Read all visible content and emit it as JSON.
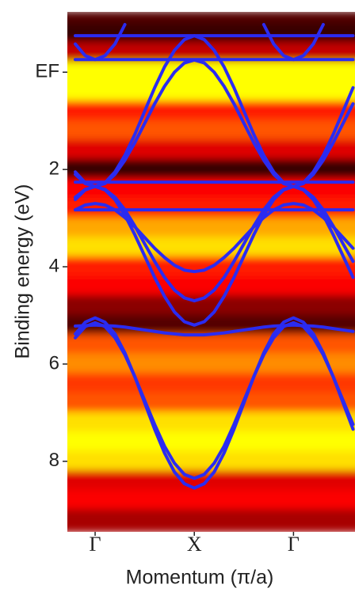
{
  "chart_data": {
    "type": "line",
    "xlabel": "Momentum (π/a)",
    "ylabel": "Binding energy (eV)",
    "xlim": [
      -0.28,
      2.62
    ],
    "xticks": [
      {
        "value": 0,
        "label": "Γ"
      },
      {
        "value": 1,
        "label": "X"
      },
      {
        "value": 2,
        "label": "Γ"
      }
    ],
    "ylim": [
      9.45,
      -1.24
    ],
    "yticks": [
      {
        "value": 0,
        "label": "EF"
      },
      2,
      4,
      6,
      8
    ],
    "intensity": {
      "colormap": "hot",
      "energies": [
        -1.2,
        -0.8,
        -0.4,
        0,
        0.4,
        0.8,
        1.2,
        1.6,
        2,
        2.4,
        2.8,
        3.2,
        3.6,
        4,
        4.4,
        4.8,
        5.2,
        5.6,
        6,
        6.4,
        6.8,
        7.2,
        7.6,
        8,
        8.4,
        8.8,
        9.2
      ],
      "values": [
        0.15,
        0.1,
        0.35,
        1,
        0.95,
        0.5,
        0.6,
        0.4,
        0.1,
        0.45,
        0.5,
        0.75,
        0.85,
        0.5,
        0.45,
        0.25,
        0.15,
        0.6,
        0.7,
        0.55,
        0.6,
        0.85,
        0.95,
        0.85,
        0.4,
        0.45,
        0.3
      ]
    },
    "x": [
      -0.2,
      -0.1,
      0,
      0.1,
      0.2,
      0.3,
      0.4,
      0.5,
      0.6,
      0.7,
      0.8,
      0.9,
      1,
      1.1,
      1.2,
      1.3,
      1.4,
      1.5,
      1.6,
      1.7,
      1.8,
      1.9,
      2,
      2.1,
      2.2,
      2.3,
      2.4,
      2.5,
      2.6
    ],
    "series": [
      {
        "color": "#2b2bf0",
        "values": [
          -0.75,
          -0.75,
          -0.75,
          -0.75,
          -0.75,
          -0.75,
          -0.75,
          -0.75,
          -0.75,
          -0.75,
          -0.75,
          -0.75,
          -0.75,
          -0.75,
          -0.75,
          -0.75,
          -0.75,
          -0.75,
          -0.75,
          -0.75,
          -0.75,
          -0.75,
          -0.75,
          -0.75,
          -0.75,
          -0.75,
          -0.75,
          -0.75,
          -0.75
        ]
      },
      {
        "color": "#2b2bf0",
        "values": [
          -0.26,
          -0.26,
          -0.26,
          -0.26,
          -0.26,
          -0.26,
          -0.26,
          -0.26,
          -0.26,
          -0.26,
          -0.26,
          -0.26,
          -0.26,
          -0.26,
          -0.26,
          -0.26,
          -0.26,
          -0.26,
          -0.26,
          -0.26,
          -0.26,
          -0.26,
          -0.26,
          -0.26,
          -0.26,
          -0.26,
          -0.26,
          -0.26,
          -0.26
        ]
      },
      {
        "color": "#2b2bf0",
        "values": [
          -0.58,
          -0.34,
          -0.26,
          -0.34,
          -0.58,
          -0.98,
          null,
          null,
          null,
          null,
          null,
          null,
          null,
          null,
          null,
          null,
          null,
          null,
          null,
          -0.98,
          -0.58,
          -0.34,
          -0.26,
          -0.34,
          -0.58,
          -0.98,
          null,
          null,
          null
        ]
      },
      {
        "color": "#2b2bf0",
        "values": [
          2.05,
          2.27,
          2.35,
          2.27,
          2.05,
          1.71,
          1.28,
          0.8,
          0.32,
          -0.11,
          -0.45,
          -0.67,
          -0.75,
          -0.67,
          -0.45,
          -0.11,
          0.32,
          0.8,
          1.28,
          1.71,
          2.05,
          2.27,
          2.35,
          2.27,
          2.05,
          1.71,
          1.28,
          0.8,
          0.32
        ]
      },
      {
        "color": "#2b2bf0",
        "values": [
          2.1,
          2.29,
          2.35,
          2.29,
          2.1,
          1.81,
          1.45,
          1.05,
          0.65,
          0.29,
          0,
          -0.19,
          -0.25,
          -0.19,
          0,
          0.29,
          0.65,
          1.05,
          1.45,
          1.81,
          2.1,
          2.29,
          2.35,
          2.29,
          2.1,
          1.81,
          1.45,
          1.05,
          0.65
        ]
      },
      {
        "color": "#2b2bf0",
        "values": [
          2.26,
          2.26,
          2.26,
          2.26,
          2.26,
          2.26,
          2.26,
          2.26,
          2.26,
          2.26,
          2.26,
          2.26,
          2.26,
          2.26,
          2.26,
          2.26,
          2.26,
          2.26,
          2.26,
          2.26,
          2.26,
          2.26,
          2.26,
          2.26,
          2.26,
          2.26,
          2.26,
          2.26,
          2.26
        ]
      },
      {
        "color": "#2b2bf0",
        "values": [
          2.83,
          2.83,
          2.83,
          2.83,
          2.83,
          2.83,
          2.83,
          2.83,
          2.83,
          2.83,
          2.83,
          2.83,
          2.83,
          2.83,
          2.83,
          2.83,
          2.83,
          2.83,
          2.83,
          2.83,
          2.83,
          2.83,
          2.83,
          2.83,
          2.83,
          2.83,
          2.83,
          2.83,
          2.83
        ]
      },
      {
        "color": "#2b2bf0",
        "values": [
          2.83,
          2.73,
          2.7,
          2.73,
          2.83,
          2.99,
          3.18,
          3.4,
          3.62,
          3.81,
          3.97,
          4.07,
          4.1,
          4.07,
          3.97,
          3.81,
          3.62,
          3.4,
          3.18,
          2.99,
          2.83,
          2.73,
          2.7,
          2.73,
          2.83,
          2.99,
          3.18,
          3.4,
          3.62
        ]
      },
      {
        "color": "#2b2bf0",
        "values": [
          2.57,
          2.41,
          2.35,
          2.41,
          2.57,
          2.83,
          3.16,
          3.53,
          3.89,
          4.22,
          4.48,
          4.64,
          4.7,
          4.64,
          4.48,
          4.22,
          3.89,
          3.53,
          3.16,
          2.83,
          2.57,
          2.41,
          2.35,
          2.41,
          2.57,
          2.83,
          3.16,
          3.53,
          3.89
        ]
      },
      {
        "color": "#2b2bf0",
        "values": [
          2.62,
          2.42,
          2.35,
          2.42,
          2.62,
          2.94,
          3.34,
          3.78,
          4.22,
          4.61,
          4.93,
          5.13,
          5.2,
          5.13,
          4.93,
          4.61,
          4.22,
          3.78,
          3.34,
          2.94,
          2.62,
          2.42,
          2.35,
          2.42,
          2.62,
          2.94,
          3.34,
          3.78,
          4.22
        ]
      },
      {
        "color": "#2b2bf0",
        "values": [
          5.22,
          5.21,
          5.2,
          5.21,
          5.22,
          5.24,
          5.27,
          5.3,
          5.33,
          5.36,
          5.38,
          5.4,
          5.4,
          5.4,
          5.38,
          5.36,
          5.33,
          5.3,
          5.27,
          5.24,
          5.22,
          5.21,
          5.2,
          5.21,
          5.22,
          5.24,
          5.27,
          5.3,
          5.33
        ]
      },
      {
        "color": "#2b2bf0",
        "values": [
          5.46,
          5.23,
          5.15,
          5.23,
          5.46,
          5.81,
          6.26,
          6.75,
          7.24,
          7.69,
          8.04,
          8.27,
          8.35,
          8.27,
          8.04,
          7.69,
          7.24,
          6.75,
          6.26,
          5.81,
          5.46,
          5.23,
          5.15,
          5.23,
          5.46,
          5.81,
          6.26,
          6.75,
          7.24
        ]
      },
      {
        "color": "#2b2bf0",
        "values": [
          5.38,
          5.14,
          5.05,
          5.14,
          5.38,
          5.77,
          6.26,
          6.8,
          7.34,
          7.83,
          8.22,
          8.46,
          8.55,
          8.46,
          8.22,
          7.83,
          7.34,
          6.8,
          6.26,
          5.77,
          5.38,
          5.14,
          5.05,
          5.14,
          5.38,
          5.77,
          6.26,
          6.8,
          7.34
        ]
      }
    ]
  }
}
